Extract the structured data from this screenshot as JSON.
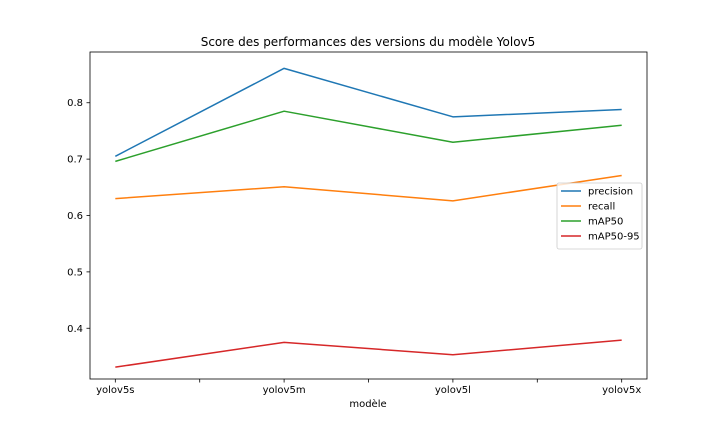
{
  "chart_data": {
    "type": "line",
    "title": "Score des performances des versions du modèle Yolov5",
    "xlabel": "modèle",
    "ylabel": "",
    "categories": [
      "yolov5s",
      "yolov5m",
      "yolov5l",
      "yolov5x"
    ],
    "x_ticks": [
      {
        "value": 0,
        "label": "yolov5s"
      },
      {
        "value": 0.5,
        "label": ""
      },
      {
        "value": 1,
        "label": "yolov5m"
      },
      {
        "value": 1.5,
        "label": ""
      },
      {
        "value": 2,
        "label": "yolov5l"
      },
      {
        "value": 2.5,
        "label": ""
      },
      {
        "value": 3,
        "label": "yolov5x"
      }
    ],
    "xlim": [
      -0.15,
      3.15
    ],
    "ylim": [
      0.31,
      0.89
    ],
    "y_ticks": [
      {
        "value": 0.4,
        "label": "0.4"
      },
      {
        "value": 0.5,
        "label": "0.5"
      },
      {
        "value": 0.6,
        "label": "0.6"
      },
      {
        "value": 0.7,
        "label": "0.7"
      },
      {
        "value": 0.8,
        "label": "0.8"
      }
    ],
    "grid": false,
    "legend_position": "center-right",
    "series": [
      {
        "name": "precision",
        "color": "#1f77b4",
        "values": [
          0.705,
          0.861,
          0.775,
          0.788
        ]
      },
      {
        "name": "recall",
        "color": "#ff7f0e",
        "values": [
          0.63,
          0.651,
          0.626,
          0.671
        ]
      },
      {
        "name": "mAP50",
        "color": "#2ca02c",
        "values": [
          0.696,
          0.785,
          0.73,
          0.76
        ]
      },
      {
        "name": "mAP50-95",
        "color": "#d62728",
        "values": [
          0.331,
          0.375,
          0.353,
          0.379
        ]
      }
    ]
  }
}
